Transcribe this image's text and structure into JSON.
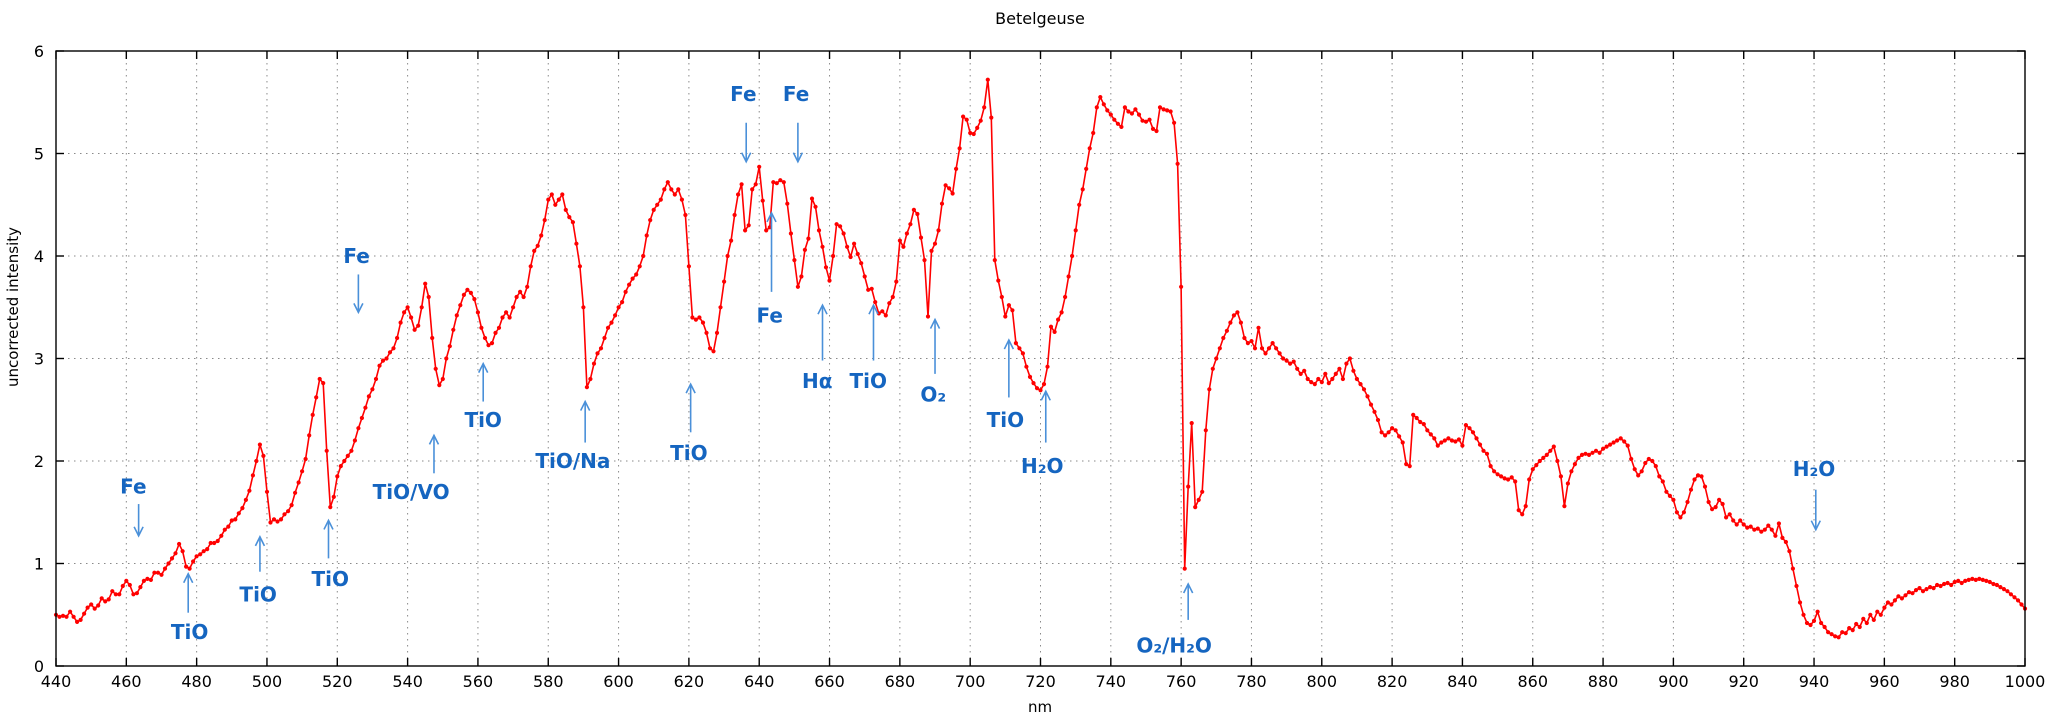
{
  "chart_data": {
    "type": "line",
    "title": "Betelgeuse",
    "xlabel": "nm",
    "ylabel": "uncorrected intensity",
    "xlim": [
      440,
      1000
    ],
    "ylim": [
      0,
      6
    ],
    "x_tick_step": 20,
    "y_tick_step": 1,
    "grid": "dotted",
    "legend": "none",
    "colors": {
      "series": "#ff0000",
      "annotation_text": "#1565c0",
      "annotation_arrow": "#4a90d9",
      "grid": "#8a8a8a",
      "axis": "#000000",
      "background": "#ffffff"
    },
    "series": [
      {
        "name": "Betelgeuse uncorrected spectrum",
        "color": "#ff0000",
        "marker": "point",
        "x_start": 440,
        "x_step": 1,
        "values": [
          0.5,
          0.48,
          0.49,
          0.48,
          0.53,
          0.48,
          0.43,
          0.45,
          0.51,
          0.57,
          0.6,
          0.56,
          0.59,
          0.66,
          0.63,
          0.65,
          0.73,
          0.7,
          0.7,
          0.78,
          0.83,
          0.79,
          0.7,
          0.71,
          0.77,
          0.83,
          0.85,
          0.84,
          0.91,
          0.91,
          0.89,
          0.95,
          1.0,
          1.05,
          1.1,
          1.19,
          1.12,
          0.97,
          0.95,
          1.02,
          1.07,
          1.09,
          1.12,
          1.14,
          1.2,
          1.2,
          1.22,
          1.27,
          1.33,
          1.36,
          1.42,
          1.43,
          1.49,
          1.54,
          1.62,
          1.71,
          1.86,
          2.0,
          2.16,
          2.05,
          1.7,
          1.4,
          1.43,
          1.41,
          1.43,
          1.48,
          1.51,
          1.57,
          1.69,
          1.79,
          1.9,
          2.02,
          2.25,
          2.45,
          2.62,
          2.8,
          2.76,
          2.1,
          1.55,
          1.65,
          1.85,
          1.95,
          2.0,
          2.05,
          2.1,
          2.2,
          2.32,
          2.42,
          2.52,
          2.63,
          2.7,
          2.8,
          2.93,
          2.98,
          3.0,
          3.06,
          3.1,
          3.2,
          3.35,
          3.45,
          3.5,
          3.4,
          3.28,
          3.32,
          3.5,
          3.73,
          3.6,
          3.2,
          2.9,
          2.74,
          2.8,
          3.0,
          3.12,
          3.28,
          3.42,
          3.52,
          3.62,
          3.67,
          3.64,
          3.58,
          3.45,
          3.3,
          3.2,
          3.13,
          3.15,
          3.25,
          3.3,
          3.4,
          3.45,
          3.4,
          3.5,
          3.6,
          3.65,
          3.6,
          3.7,
          3.9,
          4.05,
          4.1,
          4.2,
          4.35,
          4.55,
          4.6,
          4.5,
          4.55,
          4.6,
          4.45,
          4.38,
          4.33,
          4.12,
          3.9,
          3.5,
          2.72,
          2.8,
          2.95,
          3.05,
          3.1,
          3.2,
          3.3,
          3.35,
          3.42,
          3.5,
          3.55,
          3.65,
          3.72,
          3.78,
          3.82,
          3.9,
          4.0,
          4.2,
          4.35,
          4.45,
          4.5,
          4.55,
          4.65,
          4.72,
          4.65,
          4.6,
          4.65,
          4.55,
          4.4,
          3.9,
          3.4,
          3.38,
          3.4,
          3.35,
          3.25,
          3.1,
          3.07,
          3.25,
          3.5,
          3.75,
          4.0,
          4.15,
          4.4,
          4.6,
          4.7,
          4.25,
          4.3,
          4.65,
          4.7,
          4.87,
          4.54,
          4.25,
          4.28,
          4.72,
          4.71,
          4.74,
          4.72,
          4.51,
          4.22,
          3.96,
          3.7,
          3.8,
          4.06,
          4.17,
          4.56,
          4.48,
          4.25,
          4.09,
          3.89,
          3.76,
          4.0,
          4.31,
          4.29,
          4.22,
          4.09,
          3.99,
          4.12,
          4.02,
          3.93,
          3.8,
          3.67,
          3.68,
          3.55,
          3.44,
          3.46,
          3.42,
          3.54,
          3.6,
          3.75,
          4.15,
          4.09,
          4.22,
          4.31,
          4.45,
          4.41,
          4.18,
          3.96,
          3.41,
          4.05,
          4.12,
          4.25,
          4.51,
          4.69,
          4.66,
          4.61,
          4.85,
          5.05,
          5.36,
          5.33,
          5.2,
          5.19,
          5.25,
          5.32,
          5.45,
          5.72,
          5.35,
          3.96,
          3.76,
          3.6,
          3.41,
          3.52,
          3.47,
          3.15,
          3.1,
          3.05,
          2.92,
          2.82,
          2.76,
          2.71,
          2.69,
          2.75,
          2.92,
          3.31,
          3.26,
          3.38,
          3.45,
          3.6,
          3.8,
          4.0,
          4.25,
          4.5,
          4.65,
          4.85,
          5.05,
          5.2,
          5.45,
          5.55,
          5.48,
          5.42,
          5.38,
          5.33,
          5.29,
          5.26,
          5.45,
          5.41,
          5.39,
          5.43,
          5.38,
          5.32,
          5.31,
          5.33,
          5.24,
          5.22,
          5.45,
          5.43,
          5.42,
          5.41,
          5.3,
          4.9,
          3.7,
          0.95,
          1.75,
          2.37,
          1.55,
          1.62,
          1.7,
          2.3,
          2.7,
          2.9,
          3.0,
          3.1,
          3.2,
          3.27,
          3.35,
          3.42,
          3.45,
          3.35,
          3.2,
          3.15,
          3.17,
          3.1,
          3.3,
          3.1,
          3.05,
          3.1,
          3.15,
          3.1,
          3.05,
          3.0,
          2.98,
          2.95,
          2.97,
          2.9,
          2.85,
          2.88,
          2.8,
          2.77,
          2.75,
          2.8,
          2.77,
          2.85,
          2.76,
          2.8,
          2.85,
          2.9,
          2.8,
          2.95,
          3.0,
          2.88,
          2.8,
          2.75,
          2.7,
          2.63,
          2.55,
          2.48,
          2.4,
          2.28,
          2.25,
          2.28,
          2.32,
          2.3,
          2.24,
          2.18,
          1.97,
          1.95,
          2.45,
          2.42,
          2.38,
          2.36,
          2.3,
          2.26,
          2.22,
          2.15,
          2.18,
          2.2,
          2.22,
          2.2,
          2.19,
          2.21,
          2.15,
          2.35,
          2.32,
          2.28,
          2.22,
          2.16,
          2.1,
          2.07,
          1.95,
          1.9,
          1.87,
          1.85,
          1.83,
          1.82,
          1.84,
          1.8,
          1.52,
          1.48,
          1.56,
          1.82,
          1.92,
          1.96,
          2.0,
          2.03,
          2.06,
          2.1,
          2.14,
          2.0,
          1.85,
          1.56,
          1.78,
          1.9,
          1.97,
          2.03,
          2.06,
          2.07,
          2.06,
          2.08,
          2.1,
          2.08,
          2.12,
          2.14,
          2.16,
          2.18,
          2.2,
          2.22,
          2.19,
          2.15,
          2.02,
          1.92,
          1.86,
          1.9,
          1.98,
          2.02,
          2.0,
          1.95,
          1.85,
          1.8,
          1.7,
          1.66,
          1.62,
          1.5,
          1.45,
          1.5,
          1.6,
          1.72,
          1.82,
          1.86,
          1.85,
          1.75,
          1.6,
          1.53,
          1.55,
          1.62,
          1.58,
          1.45,
          1.48,
          1.42,
          1.38,
          1.42,
          1.38,
          1.35,
          1.36,
          1.33,
          1.34,
          1.31,
          1.33,
          1.37,
          1.33,
          1.27,
          1.39,
          1.25,
          1.21,
          1.12,
          0.95,
          0.78,
          0.62,
          0.5,
          0.42,
          0.4,
          0.44,
          0.53,
          0.42,
          0.38,
          0.33,
          0.31,
          0.29,
          0.28,
          0.33,
          0.32,
          0.37,
          0.35,
          0.41,
          0.38,
          0.46,
          0.42,
          0.5,
          0.45,
          0.53,
          0.5,
          0.57,
          0.62,
          0.6,
          0.64,
          0.68,
          0.66,
          0.69,
          0.72,
          0.71,
          0.74,
          0.76,
          0.73,
          0.75,
          0.77,
          0.76,
          0.79,
          0.78,
          0.8,
          0.81,
          0.79,
          0.82,
          0.83,
          0.81,
          0.83,
          0.84,
          0.85,
          0.84,
          0.85,
          0.84,
          0.83,
          0.82,
          0.8,
          0.79,
          0.77,
          0.75,
          0.73,
          0.7,
          0.67,
          0.64,
          0.6,
          0.56
        ]
      }
    ],
    "annotations": [
      {
        "label": "Fe",
        "label_x": 462,
        "label_y": 1.75,
        "arrow_x": 463.5,
        "arrow_tail": 1.58,
        "arrow_head": 1.27,
        "direction": "down"
      },
      {
        "label": "TiO",
        "label_x": 478,
        "label_y": 0.33,
        "arrow_x": 477.6,
        "arrow_tail": 0.52,
        "arrow_head": 0.9,
        "direction": "up"
      },
      {
        "label": "TiO",
        "label_x": 497.5,
        "label_y": 0.7,
        "arrow_x": 498,
        "arrow_tail": 0.92,
        "arrow_head": 1.26,
        "direction": "up"
      },
      {
        "label": "TiO",
        "label_x": 518,
        "label_y": 0.85,
        "arrow_x": 517.5,
        "arrow_tail": 1.05,
        "arrow_head": 1.42,
        "direction": "up"
      },
      {
        "label": "Fe",
        "label_x": 525.5,
        "label_y": 4.0,
        "arrow_x": 526,
        "arrow_tail": 3.82,
        "arrow_head": 3.45,
        "direction": "down"
      },
      {
        "label": "TiO/VO",
        "label_x": 541,
        "label_y": 1.7,
        "arrow_x": 547.5,
        "arrow_tail": 1.88,
        "arrow_head": 2.25,
        "direction": "up"
      },
      {
        "label": "TiO",
        "label_x": 561.5,
        "label_y": 2.4,
        "arrow_x": 561.5,
        "arrow_tail": 2.58,
        "arrow_head": 2.95,
        "direction": "up"
      },
      {
        "label": "TiO/Na",
        "label_x": 587,
        "label_y": 2.0,
        "arrow_x": 590.5,
        "arrow_tail": 2.18,
        "arrow_head": 2.58,
        "direction": "up"
      },
      {
        "label": "TiO",
        "label_x": 620,
        "label_y": 2.08,
        "arrow_x": 620.5,
        "arrow_tail": 2.28,
        "arrow_head": 2.75,
        "direction": "up"
      },
      {
        "label": "Fe",
        "label_x": 635.5,
        "label_y": 5.58,
        "arrow_x": 636.3,
        "arrow_tail": 5.3,
        "arrow_head": 4.92,
        "direction": "down"
      },
      {
        "label": "Fe",
        "label_x": 650.5,
        "label_y": 5.58,
        "arrow_x": 651,
        "arrow_tail": 5.3,
        "arrow_head": 4.92,
        "direction": "down"
      },
      {
        "label": "Fe",
        "label_x": 643,
        "label_y": 3.42,
        "arrow_x": 643.5,
        "arrow_tail": 3.65,
        "arrow_head": 4.42,
        "direction": "up"
      },
      {
        "label": "Hα",
        "label_x": 656.5,
        "label_y": 2.78,
        "arrow_x": 658,
        "arrow_tail": 2.98,
        "arrow_head": 3.52,
        "direction": "up"
      },
      {
        "label": "TiO",
        "label_x": 671,
        "label_y": 2.78,
        "arrow_x": 672.5,
        "arrow_tail": 2.98,
        "arrow_head": 3.52,
        "direction": "up"
      },
      {
        "label": "O₂",
        "label_x": 689.5,
        "label_y": 2.65,
        "arrow_x": 690,
        "arrow_tail": 2.85,
        "arrow_head": 3.38,
        "direction": "up"
      },
      {
        "label": "TiO",
        "label_x": 710,
        "label_y": 2.4,
        "arrow_x": 711,
        "arrow_tail": 2.62,
        "arrow_head": 3.18,
        "direction": "up"
      },
      {
        "label": "H₂O",
        "label_x": 720.5,
        "label_y": 1.95,
        "arrow_x": 721.5,
        "arrow_tail": 2.18,
        "arrow_head": 2.68,
        "direction": "up"
      },
      {
        "label": "O₂/H₂O",
        "label_x": 758,
        "label_y": 0.2,
        "arrow_x": 762,
        "arrow_tail": 0.45,
        "arrow_head": 0.8,
        "direction": "up"
      },
      {
        "label": "H₂O",
        "label_x": 940,
        "label_y": 1.92,
        "arrow_x": 940.5,
        "arrow_tail": 1.72,
        "arrow_head": 1.33,
        "direction": "down"
      }
    ]
  }
}
